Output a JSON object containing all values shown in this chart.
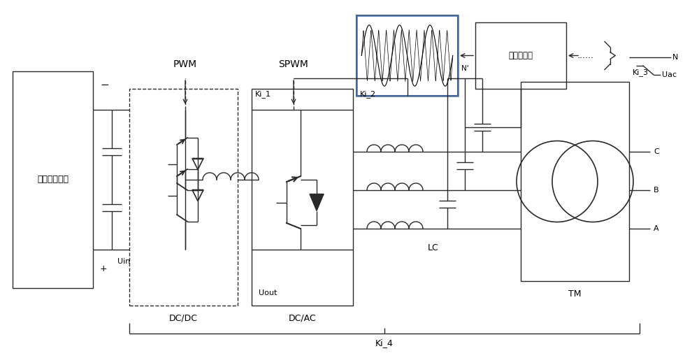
{
  "bg_color": "#ffffff",
  "line_color": "#2a2a2a",
  "figsize": [
    10.0,
    5.12
  ],
  "dpi": 100,
  "labels": {
    "ki4": "Ki_4",
    "dcdc": "DC/DC",
    "dcac": "DC/AC",
    "uin": "Uin",
    "uout": "Uout",
    "ki1": "Ki_1",
    "ki2": "Ki_2",
    "ki3": "Ki_3",
    "lc": "LC",
    "tm": "TM",
    "pwm": "PWM",
    "spwm": "SPWM",
    "battery": "储能电池阵列",
    "inverter": "逆变器控制",
    "N_prime": "N'",
    "A": "A",
    "B": "B",
    "C": "C",
    "N": "N",
    "Uac": "Uac",
    "plus": "+",
    "minus": "−",
    "ellipsis": "......"
  }
}
